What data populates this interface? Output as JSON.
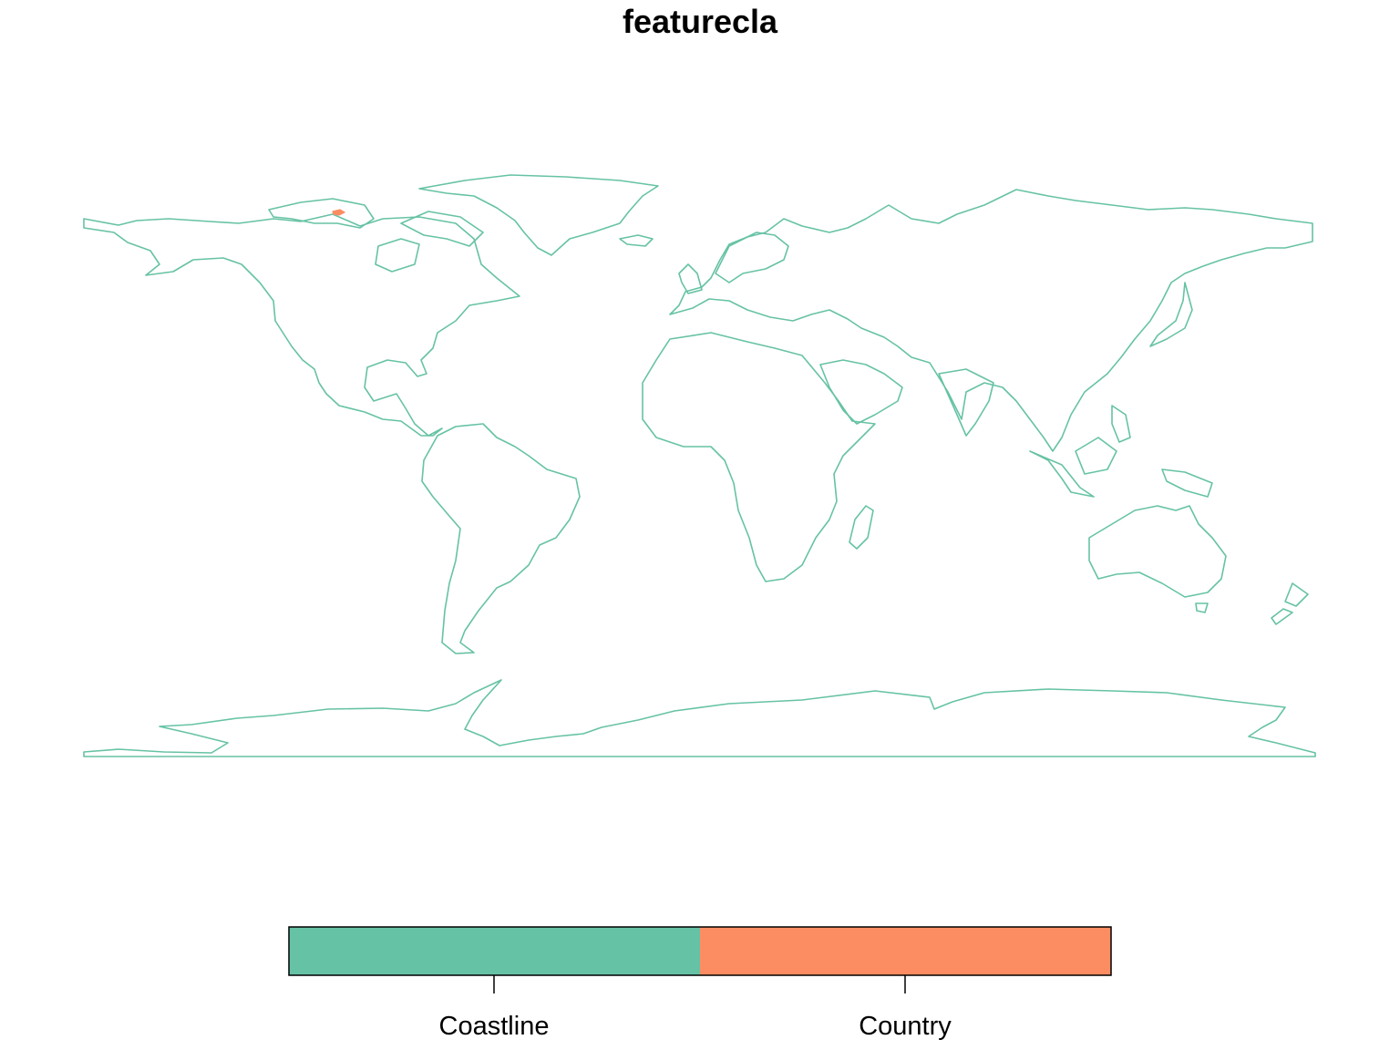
{
  "title": "featurecla",
  "legend": {
    "categories": [
      {
        "label": "Coastline",
        "color": "#66c2a5"
      },
      {
        "label": "Country",
        "color": "#fc8d62"
      }
    ]
  },
  "map": {
    "projection": "equirectangular",
    "line_color": "#66c2a5",
    "highlight_color": "#fc8d62",
    "features": [
      {
        "name": "north-america",
        "class": "Coastline"
      },
      {
        "name": "greenland",
        "class": "Coastline"
      },
      {
        "name": "south-america",
        "class": "Coastline"
      },
      {
        "name": "europe-asia",
        "class": "Coastline"
      },
      {
        "name": "africa",
        "class": "Coastline"
      },
      {
        "name": "australia",
        "class": "Coastline"
      },
      {
        "name": "antarctica",
        "class": "Coastline"
      },
      {
        "name": "country-feature",
        "class": "Country"
      }
    ]
  }
}
